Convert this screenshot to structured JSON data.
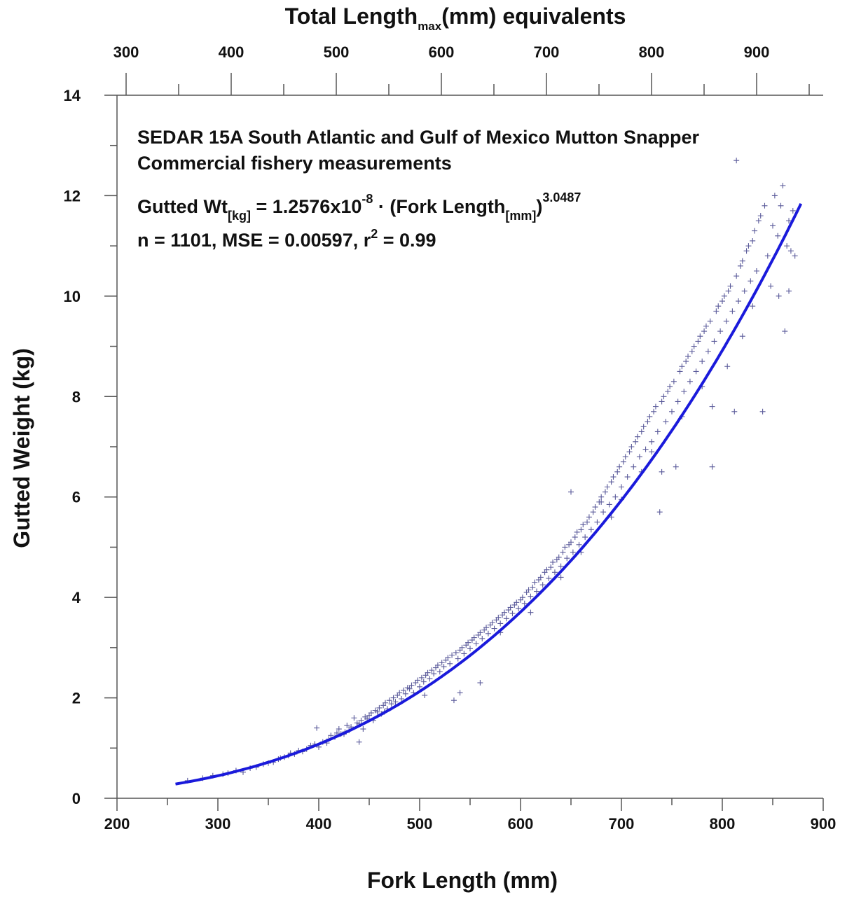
{
  "chart_data": {
    "type": "scatter",
    "annotation_line1": "SEDAR 15A South Atlantic and Gulf of Mexico Mutton Snapper",
    "annotation_line2": "Commercial fishery measurements",
    "equation": {
      "lhs": "Gutted Wt",
      "lhs_sub": "[kg]",
      "mid": " = 1.2576x10",
      "exp": "-8",
      "dot": " · ",
      "paren": "(Fork Length",
      "paren_sub": "[mm]",
      "close": ")",
      "power": "3.0487"
    },
    "stats": {
      "prefix": "n = 1101, MSE = 0.00597, r",
      "sup": "2",
      "suffix": " = 0.99"
    },
    "xlabel": "Fork Length (mm)",
    "ylabel": "Gutted Weight (kg)",
    "top_axis": {
      "label_main": "Total Length",
      "label_sub": "max",
      "label_rest": "(mm) equivalents",
      "ticks": [
        "300",
        "400",
        "500",
        "600",
        "700",
        "800",
        "900"
      ]
    },
    "xlim": [
      200,
      900
    ],
    "ylim": [
      0,
      14
    ],
    "x_ticks": [
      "200",
      "300",
      "400",
      "500",
      "600",
      "700",
      "800",
      "900"
    ],
    "y_ticks": [
      "0",
      "2",
      "4",
      "6",
      "8",
      "10",
      "12",
      "14"
    ],
    "fit": {
      "a": 1.2576e-08,
      "b": 3.0487,
      "x_start": 258,
      "x_end": 880
    },
    "series": [
      {
        "marker": "+",
        "points": [
          [
            270,
            0.35
          ],
          [
            285,
            0.4
          ],
          [
            295,
            0.45
          ],
          [
            305,
            0.48
          ],
          [
            310,
            0.5
          ],
          [
            318,
            0.55
          ],
          [
            325,
            0.52
          ],
          [
            332,
            0.6
          ],
          [
            338,
            0.62
          ],
          [
            345,
            0.68
          ],
          [
            350,
            0.7
          ],
          [
            355,
            0.72
          ],
          [
            360,
            0.78
          ],
          [
            362,
            0.8
          ],
          [
            366,
            0.82
          ],
          [
            370,
            0.85
          ],
          [
            372,
            0.9
          ],
          [
            376,
            0.88
          ],
          [
            380,
            0.95
          ],
          [
            384,
            0.93
          ],
          [
            388,
            0.98
          ],
          [
            392,
            1.05
          ],
          [
            396,
            1.08
          ],
          [
            398,
            1.4
          ],
          [
            400,
            1.02
          ],
          [
            404,
            1.12
          ],
          [
            408,
            1.1
          ],
          [
            410,
            1.18
          ],
          [
            412,
            1.25
          ],
          [
            416,
            1.22
          ],
          [
            418,
            1.3
          ],
          [
            420,
            1.38
          ],
          [
            422,
            1.28
          ],
          [
            426,
            1.32
          ],
          [
            428,
            1.45
          ],
          [
            430,
            1.35
          ],
          [
            432,
            1.42
          ],
          [
            435,
            1.6
          ],
          [
            438,
            1.5
          ],
          [
            440,
            1.48
          ],
          [
            442,
            1.55
          ],
          [
            444,
            1.38
          ],
          [
            446,
            1.62
          ],
          [
            448,
            1.58
          ],
          [
            450,
            1.65
          ],
          [
            452,
            1.7
          ],
          [
            454,
            1.55
          ],
          [
            456,
            1.75
          ],
          [
            458,
            1.72
          ],
          [
            460,
            1.8
          ],
          [
            462,
            1.68
          ],
          [
            464,
            1.85
          ],
          [
            466,
            1.9
          ],
          [
            468,
            1.78
          ],
          [
            470,
            1.95
          ],
          [
            472,
            1.88
          ],
          [
            474,
            2.0
          ],
          [
            476,
            1.92
          ],
          [
            478,
            2.05
          ],
          [
            480,
            2.1
          ],
          [
            482,
            1.98
          ],
          [
            484,
            2.15
          ],
          [
            486,
            2.08
          ],
          [
            488,
            2.2
          ],
          [
            490,
            2.18
          ],
          [
            492,
            2.25
          ],
          [
            494,
            2.1
          ],
          [
            496,
            2.3
          ],
          [
            498,
            2.35
          ],
          [
            500,
            2.22
          ],
          [
            502,
            2.4
          ],
          [
            504,
            2.32
          ],
          [
            506,
            2.45
          ],
          [
            508,
            2.5
          ],
          [
            510,
            2.38
          ],
          [
            512,
            2.55
          ],
          [
            514,
            2.48
          ],
          [
            516,
            2.6
          ],
          [
            518,
            2.65
          ],
          [
            520,
            2.52
          ],
          [
            522,
            2.7
          ],
          [
            524,
            2.62
          ],
          [
            526,
            2.75
          ],
          [
            528,
            2.8
          ],
          [
            530,
            2.68
          ],
          [
            532,
            2.85
          ],
          [
            534,
            1.95
          ],
          [
            536,
            2.9
          ],
          [
            538,
            2.78
          ],
          [
            540,
            2.95
          ],
          [
            542,
            3.0
          ],
          [
            544,
            2.88
          ],
          [
            546,
            3.05
          ],
          [
            548,
            3.1
          ],
          [
            550,
            2.98
          ],
          [
            552,
            3.15
          ],
          [
            554,
            3.2
          ],
          [
            556,
            3.08
          ],
          [
            558,
            3.25
          ],
          [
            560,
            3.3
          ],
          [
            562,
            3.18
          ],
          [
            564,
            3.35
          ],
          [
            566,
            3.4
          ],
          [
            568,
            3.28
          ],
          [
            570,
            3.45
          ],
          [
            572,
            3.5
          ],
          [
            574,
            3.38
          ],
          [
            576,
            3.55
          ],
          [
            578,
            3.6
          ],
          [
            580,
            3.48
          ],
          [
            582,
            3.65
          ],
          [
            584,
            3.7
          ],
          [
            586,
            3.58
          ],
          [
            588,
            3.75
          ],
          [
            590,
            3.8
          ],
          [
            592,
            3.68
          ],
          [
            594,
            3.85
          ],
          [
            596,
            3.9
          ],
          [
            598,
            3.78
          ],
          [
            600,
            3.95
          ],
          [
            602,
            4.0
          ],
          [
            604,
            3.88
          ],
          [
            606,
            4.1
          ],
          [
            608,
            4.15
          ],
          [
            610,
            4.02
          ],
          [
            612,
            4.2
          ],
          [
            614,
            4.3
          ],
          [
            616,
            4.12
          ],
          [
            618,
            4.35
          ],
          [
            620,
            4.4
          ],
          [
            622,
            4.25
          ],
          [
            624,
            4.5
          ],
          [
            626,
            4.55
          ],
          [
            628,
            4.38
          ],
          [
            630,
            4.6
          ],
          [
            632,
            4.7
          ],
          [
            634,
            4.5
          ],
          [
            636,
            4.75
          ],
          [
            638,
            4.8
          ],
          [
            640,
            4.62
          ],
          [
            642,
            4.9
          ],
          [
            644,
            5.0
          ],
          [
            646,
            4.78
          ],
          [
            648,
            5.05
          ],
          [
            650,
            5.1
          ],
          [
            652,
            4.9
          ],
          [
            654,
            5.2
          ],
          [
            656,
            5.3
          ],
          [
            658,
            5.05
          ],
          [
            660,
            5.35
          ],
          [
            662,
            5.45
          ],
          [
            664,
            5.2
          ],
          [
            666,
            5.5
          ],
          [
            668,
            5.6
          ],
          [
            670,
            5.35
          ],
          [
            672,
            5.7
          ],
          [
            674,
            5.8
          ],
          [
            676,
            5.5
          ],
          [
            678,
            5.9
          ],
          [
            680,
            6.0
          ],
          [
            682,
            5.7
          ],
          [
            684,
            6.1
          ],
          [
            686,
            6.2
          ],
          [
            688,
            5.85
          ],
          [
            690,
            6.3
          ],
          [
            692,
            6.4
          ],
          [
            694,
            6.0
          ],
          [
            696,
            6.5
          ],
          [
            698,
            6.6
          ],
          [
            700,
            6.2
          ],
          [
            702,
            6.7
          ],
          [
            704,
            6.8
          ],
          [
            706,
            6.4
          ],
          [
            708,
            6.9
          ],
          [
            710,
            7.0
          ],
          [
            712,
            6.6
          ],
          [
            714,
            7.1
          ],
          [
            716,
            7.2
          ],
          [
            718,
            6.8
          ],
          [
            720,
            7.3
          ],
          [
            722,
            7.4
          ],
          [
            724,
            6.95
          ],
          [
            726,
            7.5
          ],
          [
            728,
            7.6
          ],
          [
            730,
            7.1
          ],
          [
            732,
            7.7
          ],
          [
            734,
            7.8
          ],
          [
            736,
            7.3
          ],
          [
            738,
            5.7
          ],
          [
            740,
            7.9
          ],
          [
            742,
            8.0
          ],
          [
            744,
            7.5
          ],
          [
            746,
            8.1
          ],
          [
            748,
            8.2
          ],
          [
            750,
            7.7
          ],
          [
            752,
            8.3
          ],
          [
            754,
            6.6
          ],
          [
            756,
            7.9
          ],
          [
            758,
            8.5
          ],
          [
            760,
            8.6
          ],
          [
            762,
            8.1
          ],
          [
            764,
            8.7
          ],
          [
            766,
            8.8
          ],
          [
            768,
            8.3
          ],
          [
            770,
            8.9
          ],
          [
            772,
            9.0
          ],
          [
            774,
            8.5
          ],
          [
            776,
            9.1
          ],
          [
            778,
            9.2
          ],
          [
            780,
            8.7
          ],
          [
            782,
            9.3
          ],
          [
            784,
            9.4
          ],
          [
            786,
            8.9
          ],
          [
            788,
            9.5
          ],
          [
            790,
            6.6
          ],
          [
            792,
            9.1
          ],
          [
            794,
            9.7
          ],
          [
            796,
            9.8
          ],
          [
            798,
            9.3
          ],
          [
            800,
            9.9
          ],
          [
            802,
            10.0
          ],
          [
            804,
            9.5
          ],
          [
            806,
            10.1
          ],
          [
            808,
            10.2
          ],
          [
            810,
            9.7
          ],
          [
            812,
            7.7
          ],
          [
            814,
            10.4
          ],
          [
            816,
            9.9
          ],
          [
            818,
            10.6
          ],
          [
            820,
            10.7
          ],
          [
            822,
            10.1
          ],
          [
            824,
            10.9
          ],
          [
            826,
            11.0
          ],
          [
            828,
            10.3
          ],
          [
            830,
            11.1
          ],
          [
            832,
            11.3
          ],
          [
            834,
            10.5
          ],
          [
            836,
            11.5
          ],
          [
            838,
            11.6
          ],
          [
            840,
            7.7
          ],
          [
            842,
            11.8
          ],
          [
            845,
            10.8
          ],
          [
            848,
            10.2
          ],
          [
            850,
            11.4
          ],
          [
            852,
            12.0
          ],
          [
            855,
            11.2
          ],
          [
            858,
            11.8
          ],
          [
            860,
            12.2
          ],
          [
            862,
            9.3
          ],
          [
            864,
            11.0
          ],
          [
            866,
            11.5
          ],
          [
            868,
            10.9
          ],
          [
            870,
            11.7
          ],
          [
            872,
            10.8
          ],
          [
            814,
            12.7
          ],
          [
            856,
            10.0
          ],
          [
            866,
            10.1
          ],
          [
            650,
            6.1
          ],
          [
            560,
            2.3
          ],
          [
            540,
            2.1
          ],
          [
            505,
            2.05
          ],
          [
            465,
            1.72
          ],
          [
            440,
            1.12
          ],
          [
            425,
            1.28
          ],
          [
            610,
            3.7
          ],
          [
            580,
            3.3
          ],
          [
            680,
            5.9
          ],
          [
            700,
            5.95
          ],
          [
            730,
            6.9
          ],
          [
            760,
            7.6
          ],
          [
            780,
            8.2
          ],
          [
            790,
            7.8
          ],
          [
            805,
            8.6
          ],
          [
            820,
            9.2
          ],
          [
            830,
            9.8
          ],
          [
            740,
            6.5
          ],
          [
            720,
            6.5
          ],
          [
            690,
            5.6
          ],
          [
            660,
            4.9
          ],
          [
            640,
            4.4
          ]
        ]
      }
    ]
  }
}
